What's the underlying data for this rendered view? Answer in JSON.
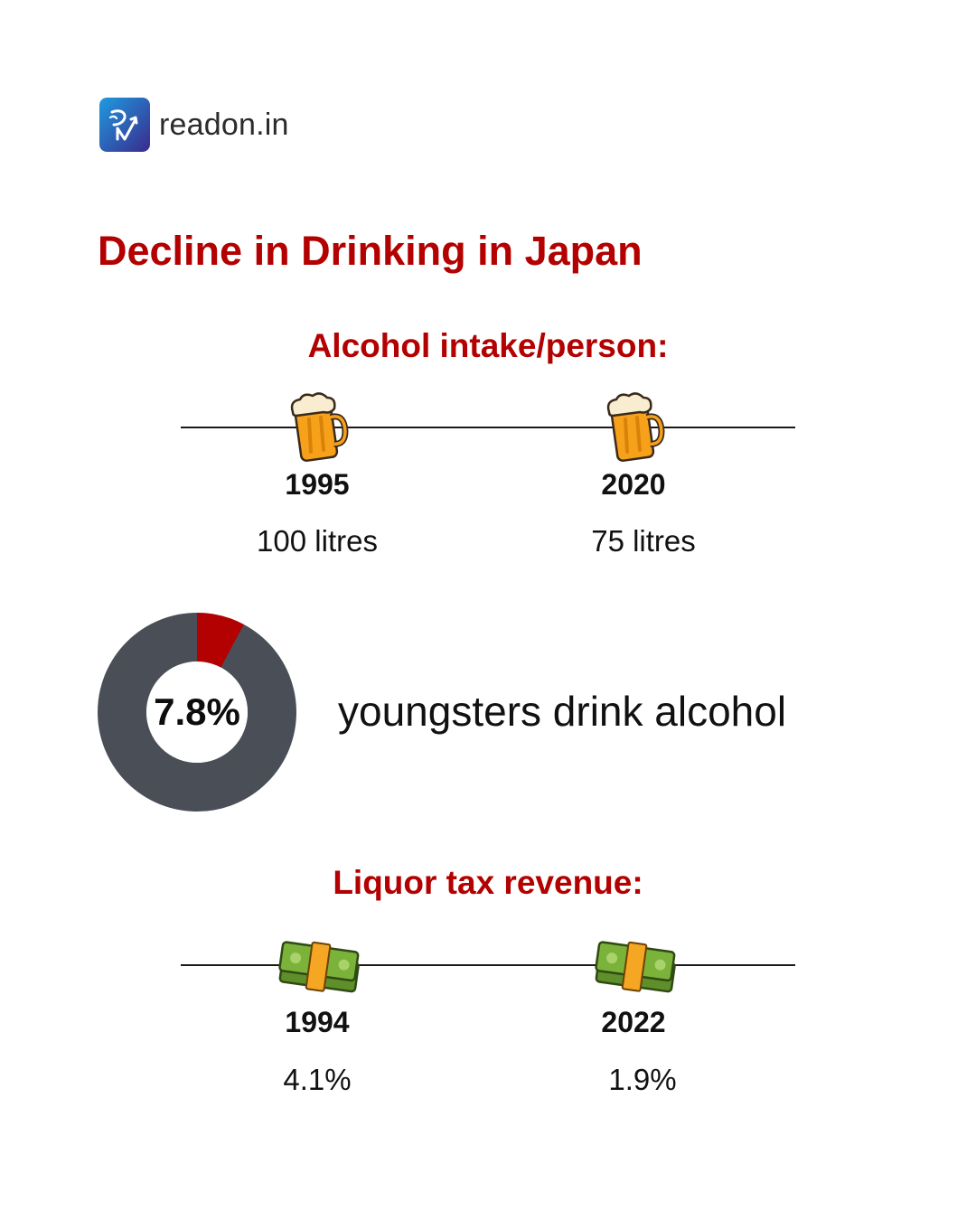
{
  "brand": {
    "name": "readon.in",
    "logo_icon": "readon-logo-icon",
    "logo_colors": [
      "#1f7bd8",
      "#3b2a8c"
    ]
  },
  "title": "Decline in Drinking in Japan",
  "alcohol_section": {
    "heading": "Alcohol intake/person:",
    "icon": "beer-mug-icon",
    "points": [
      {
        "year": "1995",
        "value": "100 litres"
      },
      {
        "year": "2020",
        "value": "75 litres"
      }
    ]
  },
  "youth": {
    "percent_label": "7.8%",
    "fraction": 0.078,
    "caption": "youngsters drink alcohol",
    "colors": {
      "highlight": "#b30000",
      "rest": "#4a4f57"
    }
  },
  "tax_section": {
    "heading": "Liquor tax revenue:",
    "icon": "money-stack-icon",
    "points": [
      {
        "year": "1994",
        "value": "4.1%"
      },
      {
        "year": "2022",
        "value": "1.9%"
      }
    ]
  },
  "colors": {
    "accent": "#b30000",
    "text": "#111111"
  }
}
